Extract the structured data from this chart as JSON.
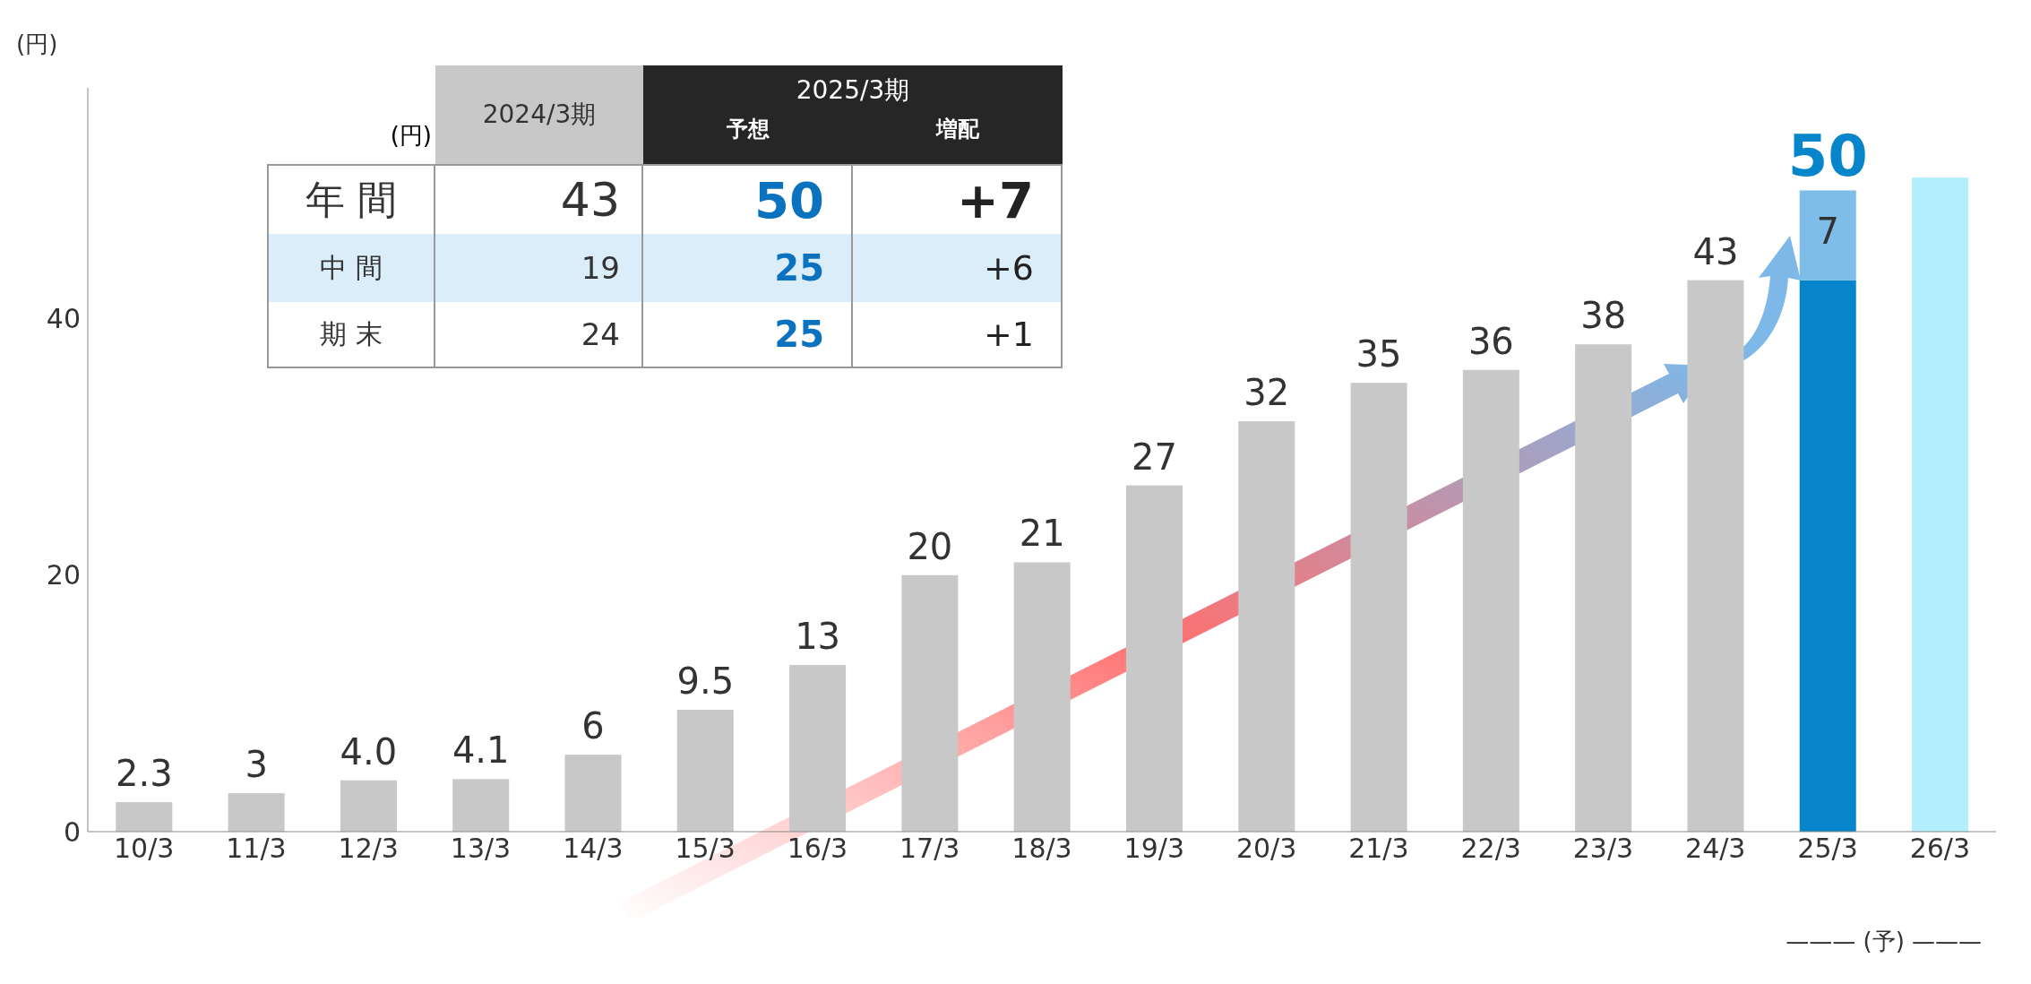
{
  "chart_data": [
    {
      "type": "bar",
      "ylabel": "(円)",
      "categories": [
        "10/3",
        "11/3",
        "12/3",
        "13/3",
        "14/3",
        "15/3",
        "16/3",
        "17/3",
        "18/3",
        "19/3",
        "20/3",
        "21/3",
        "22/3",
        "23/3",
        "24/3",
        "25/3",
        "26/3"
      ],
      "stacked": true,
      "series": [
        {
          "color": "#c8c8c8",
          "values": [
            2.3,
            3,
            4.0,
            4.1,
            6,
            9.5,
            13,
            20,
            21,
            27,
            32,
            35,
            36,
            38,
            43,
            null,
            null
          ],
          "value_labels": [
            "2.3",
            "3",
            "4.0",
            "4.1",
            "6",
            "9.5",
            "13",
            "20",
            "21",
            "27",
            "32",
            "35",
            "36",
            "38",
            "43",
            null,
            null
          ]
        },
        {
          "color": "#0785cb",
          "values": [
            null,
            null,
            null,
            null,
            null,
            null,
            null,
            null,
            null,
            null,
            null,
            null,
            null,
            null,
            null,
            43,
            null
          ]
        },
        {
          "color": "#7dbde8",
          "values": [
            null,
            null,
            null,
            null,
            null,
            null,
            null,
            null,
            null,
            null,
            null,
            null,
            null,
            null,
            null,
            7,
            null
          ],
          "value_labels": [
            null,
            null,
            null,
            null,
            null,
            null,
            null,
            null,
            null,
            null,
            null,
            null,
            null,
            null,
            null,
            "7",
            null
          ]
        },
        {
          "color": "#b3eefc",
          "values": [
            null,
            null,
            null,
            null,
            null,
            null,
            null,
            null,
            null,
            null,
            null,
            null,
            null,
            null,
            null,
            null,
            51
          ]
        }
      ],
      "totals": [
        null,
        null,
        null,
        null,
        null,
        null,
        null,
        null,
        null,
        null,
        null,
        null,
        null,
        null,
        null,
        "50",
        null
      ],
      "ylim": [
        0,
        58
      ],
      "yticks": [
        0,
        20,
        40
      ],
      "grid": false,
      "legend": false,
      "annotations": [
        "——— (予) ———"
      ]
    },
    {
      "type": "other",
      "annotations": [
        "(円)",
        "2024/3期",
        "2025/3期",
        "予想",
        "増配",
        "年 間",
        "43",
        "50",
        "+7",
        "中 間",
        "19",
        "25",
        "+6",
        "期 末",
        "24",
        "25",
        "+1"
      ]
    }
  ]
}
